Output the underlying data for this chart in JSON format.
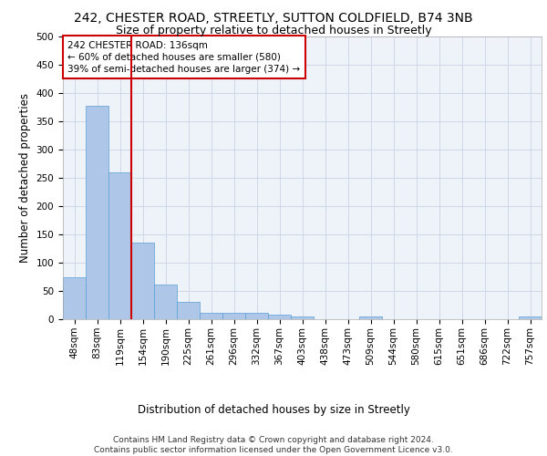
{
  "title_line1": "242, CHESTER ROAD, STREETLY, SUTTON COLDFIELD, B74 3NB",
  "title_line2": "Size of property relative to detached houses in Streetly",
  "xlabel": "Distribution of detached houses by size in Streetly",
  "ylabel": "Number of detached properties",
  "footer": "Contains HM Land Registry data © Crown copyright and database right 2024.\nContains public sector information licensed under the Open Government Licence v3.0.",
  "categories": [
    "48sqm",
    "83sqm",
    "119sqm",
    "154sqm",
    "190sqm",
    "225sqm",
    "261sqm",
    "296sqm",
    "332sqm",
    "367sqm",
    "403sqm",
    "438sqm",
    "473sqm",
    "509sqm",
    "544sqm",
    "580sqm",
    "615sqm",
    "651sqm",
    "686sqm",
    "722sqm",
    "757sqm"
  ],
  "values": [
    75,
    378,
    259,
    136,
    61,
    30,
    11,
    11,
    11,
    8,
    5,
    0,
    0,
    5,
    0,
    0,
    0,
    0,
    0,
    0,
    5
  ],
  "bar_color": "#aec6e8",
  "bar_edge_color": "#5a9fd4",
  "grid_color": "#d0d8e8",
  "bg_color": "#eef2f9",
  "vline_color": "#cc0000",
  "vline_x": 2.5,
  "annotation_box_text": "242 CHESTER ROAD: 136sqm\n← 60% of detached houses are smaller (580)\n39% of semi-detached houses are larger (374) →",
  "ylim": [
    0,
    500
  ],
  "yticks": [
    0,
    50,
    100,
    150,
    200,
    250,
    300,
    350,
    400,
    450,
    500
  ],
  "title_fontsize": 10,
  "subtitle_fontsize": 9,
  "axis_label_fontsize": 8.5,
  "tick_fontsize": 7.5,
  "annotation_fontsize": 7.5,
  "footer_fontsize": 6.5
}
